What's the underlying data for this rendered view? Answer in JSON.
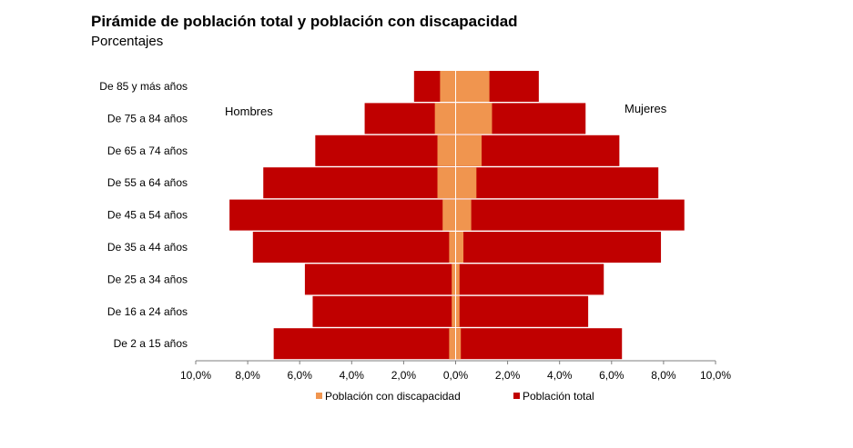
{
  "chart_data": {
    "type": "bar",
    "orientation": "horizontal",
    "layout": "population-pyramid",
    "title": "Pirámide de población total y población con discapacidad",
    "subtitle": "Porcentajes",
    "left_label": "Hombres",
    "right_label": "Mujeres",
    "categories": [
      "De 85 y más años",
      "De 75 a 84 años",
      "De 65 a 74 años",
      "De 55 a 64 años",
      "De 45 a 54 años",
      "De 35 a 44 años",
      "De 25 a 34 años",
      "De 16 a 24 años",
      "De 2 a 15 años"
    ],
    "xlim": [
      -10,
      10
    ],
    "xticks": [
      {
        "value": -10,
        "label": "10,0%"
      },
      {
        "value": -8,
        "label": "8,0%"
      },
      {
        "value": -6,
        "label": "6,0%"
      },
      {
        "value": -4,
        "label": "4,0%"
      },
      {
        "value": -2,
        "label": "2,0%"
      },
      {
        "value": 0,
        "label": "0,0%"
      },
      {
        "value": 2,
        "label": "2,0%"
      },
      {
        "value": 4,
        "label": "4,0%"
      },
      {
        "value": 6,
        "label": "6,0%"
      },
      {
        "value": 8,
        "label": "8,0%"
      },
      {
        "value": 10,
        "label": "10,0%"
      }
    ],
    "series": [
      {
        "name": "Población total",
        "color": "#c00000",
        "hombres": [
          1.6,
          3.5,
          5.4,
          7.4,
          8.7,
          7.8,
          5.8,
          5.5,
          7.0
        ],
        "mujeres": [
          3.2,
          5.0,
          6.3,
          7.8,
          8.8,
          7.9,
          5.7,
          5.1,
          6.4
        ]
      },
      {
        "name": "Población con discapacidad",
        "color": "#f0954f",
        "hombres": [
          0.6,
          0.8,
          0.7,
          0.7,
          0.5,
          0.25,
          0.15,
          0.15,
          0.25
        ],
        "mujeres": [
          1.3,
          1.4,
          1.0,
          0.8,
          0.6,
          0.3,
          0.15,
          0.15,
          0.2
        ]
      }
    ],
    "legend": [
      {
        "label": "Población con discapacidad",
        "color": "#f0954f"
      },
      {
        "label": "Población total",
        "color": "#c00000"
      }
    ],
    "legend_position": "bottom",
    "grid": false
  }
}
